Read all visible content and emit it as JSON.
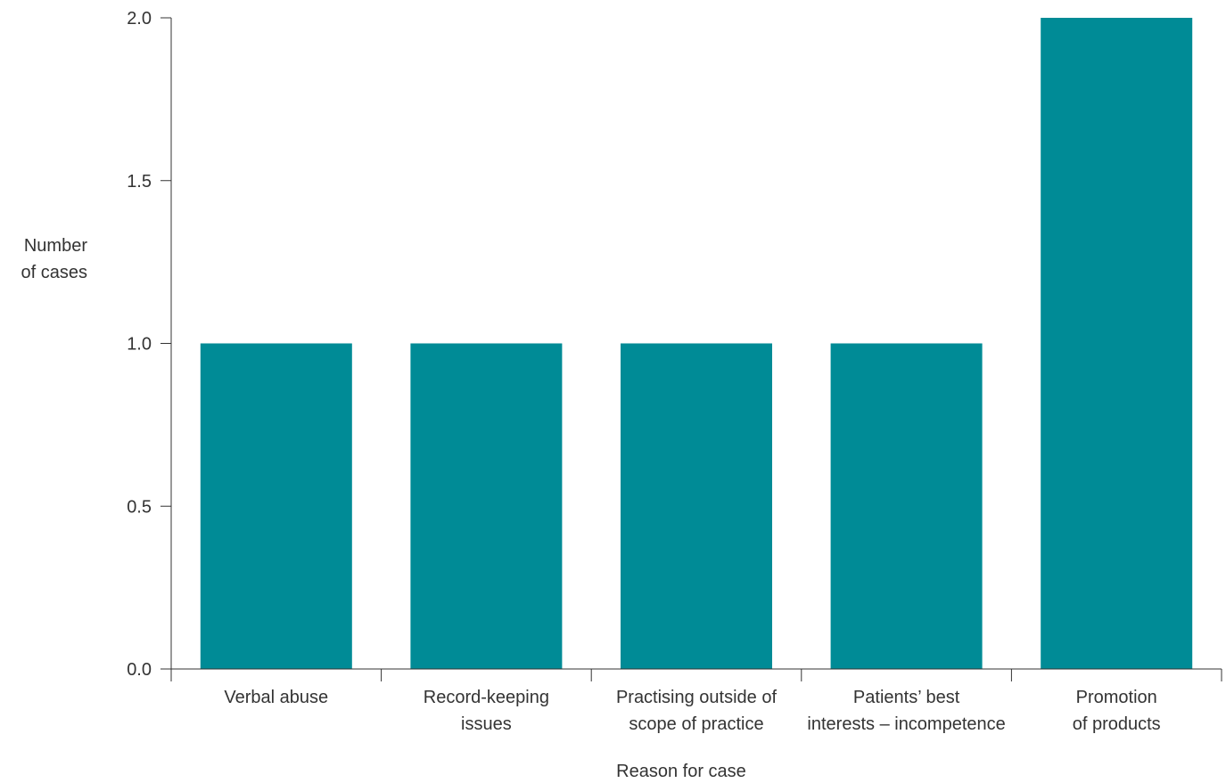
{
  "chart_data": {
    "type": "bar",
    "categories": [
      [
        "Verbal abuse"
      ],
      [
        "Record-keeping",
        "issues"
      ],
      [
        "Practising outside of",
        "scope of practice"
      ],
      [
        "Patients’ best",
        "interests – incompetence"
      ],
      [
        "Promotion",
        "of products"
      ]
    ],
    "values": [
      1,
      1,
      1,
      1,
      2
    ],
    "title": "",
    "xlabel": "Reason for case",
    "ylabel": [
      "Number",
      "of cases"
    ],
    "ylim": [
      0,
      2.0
    ],
    "yticks": [
      "0.0",
      "0.5",
      "1.0",
      "1.5",
      "2.0"
    ],
    "grid": false,
    "bar_color": "#008b96"
  }
}
